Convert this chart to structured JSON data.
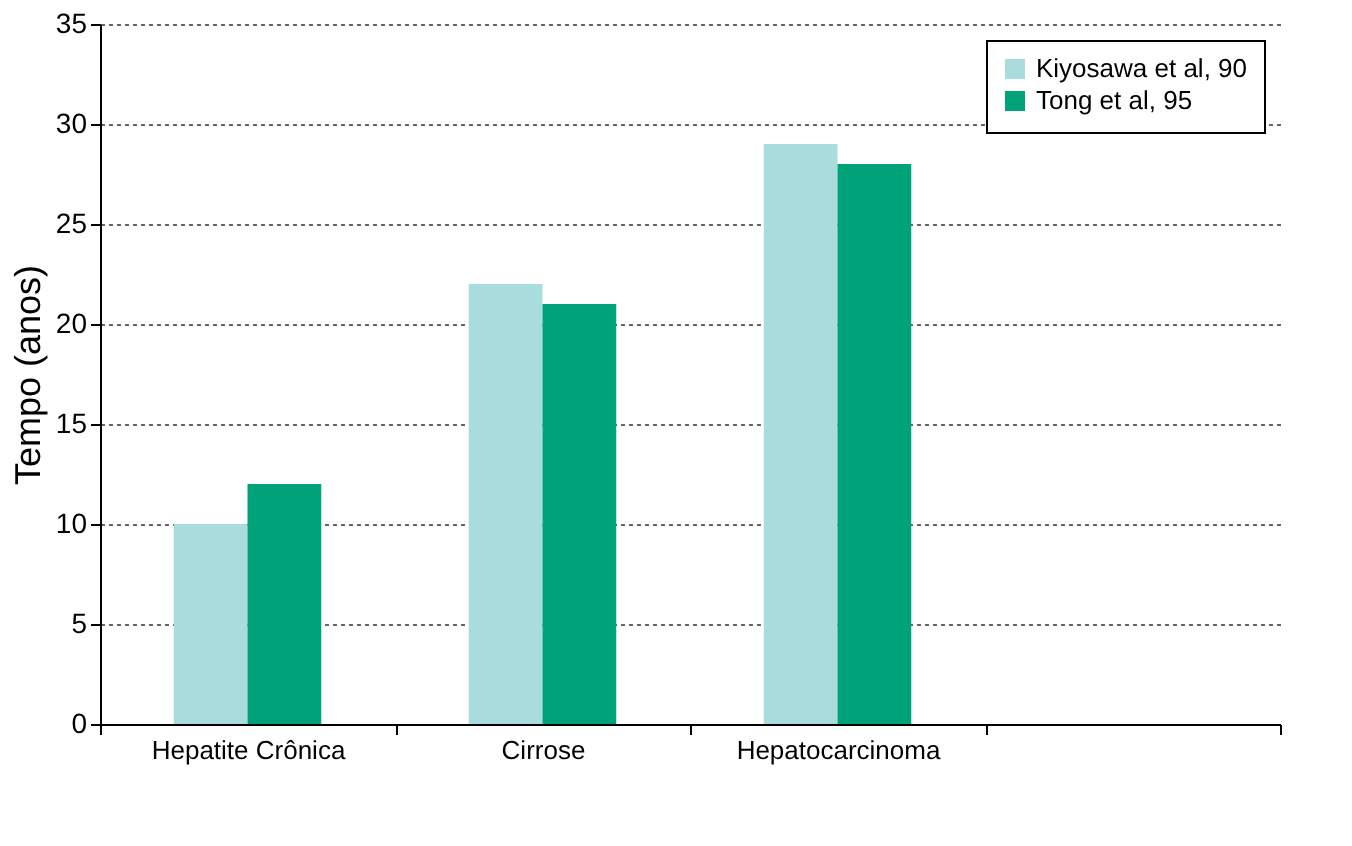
{
  "chart_data": {
    "type": "bar",
    "ylabel": "Tempo (anos)",
    "categories": [
      "Hepatite Crônica",
      "Cirrose",
      "Hepatocarcinoma",
      null
    ],
    "series": [
      {
        "name": "Kiyosawa et al, 90",
        "color": "#a9dcdc",
        "values": [
          10,
          22,
          29,
          null
        ]
      },
      {
        "name": "Tong et al, 95",
        "color": "#00a27a",
        "values": [
          12,
          21,
          28,
          null
        ]
      }
    ],
    "ylim": [
      0,
      35
    ],
    "yticks": [
      0,
      5,
      10,
      15,
      20,
      25,
      30,
      35
    ],
    "grid": "y",
    "legend": "top right"
  }
}
